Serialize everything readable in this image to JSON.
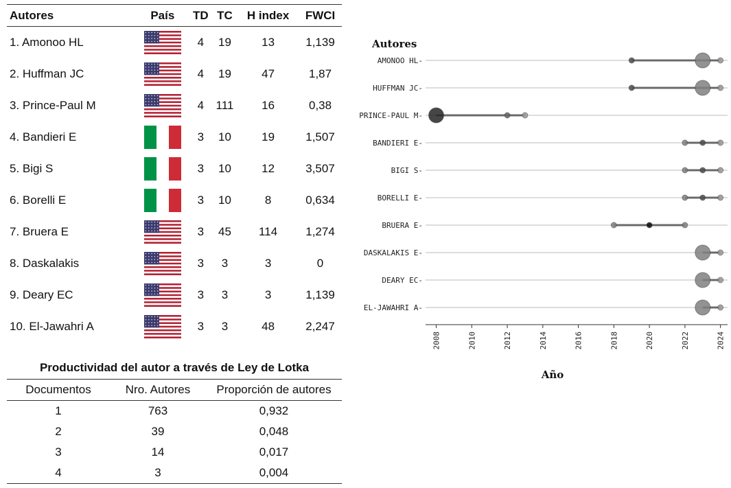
{
  "authors_table": {
    "headers": [
      "Autores",
      "País",
      "TD",
      "TC",
      "H index",
      "FWCI"
    ],
    "rows": [
      {
        "author": "1. Amonoo HL",
        "country": "usa-flag",
        "td": "4",
        "tc": "19",
        "h": "13",
        "fwci": "1,139"
      },
      {
        "author": "2. Huffman JC",
        "country": "usa-flag",
        "td": "4",
        "tc": "19",
        "h": "47",
        "fwci": "1,87"
      },
      {
        "author": "3. Prince-Paul M",
        "country": "usa-flag",
        "td": "4",
        "tc": "111",
        "h": "16",
        "fwci": "0,38"
      },
      {
        "author": "4. Bandieri E",
        "country": "italy-flag",
        "td": "3",
        "tc": "10",
        "h": "19",
        "fwci": "1,507"
      },
      {
        "author": "5. Bigi S",
        "country": "italy-flag",
        "td": "3",
        "tc": "10",
        "h": "12",
        "fwci": "3,507"
      },
      {
        "author": "6. Borelli E",
        "country": "italy-flag",
        "td": "3",
        "tc": "10",
        "h": "8",
        "fwci": "0,634"
      },
      {
        "author": "7. Bruera E",
        "country": "usa-flag",
        "td": "3",
        "tc": "45",
        "h": "114",
        "fwci": "1,274"
      },
      {
        "author": "8. Daskalakis",
        "country": "usa-flag",
        "td": "3",
        "tc": "3",
        "h": "3",
        "fwci": "0"
      },
      {
        "author": "9. Deary EC",
        "country": "usa-flag",
        "td": "3",
        "tc": "3",
        "h": "3",
        "fwci": "1,139"
      },
      {
        "author": "10. El-Jawahri A",
        "country": "usa-flag",
        "td": "3",
        "tc": "3",
        "h": "48",
        "fwci": "2,247"
      }
    ]
  },
  "lotka_table": {
    "title": "Productividad del autor a través de Ley de Lotka",
    "headers": [
      "Documentos",
      "Nro. Autores",
      "Proporción de autores"
    ],
    "rows": [
      {
        "docs": "1",
        "authors": "763",
        "proportion": "0,932"
      },
      {
        "docs": "2",
        "authors": "39",
        "proportion": "0,048"
      },
      {
        "docs": "3",
        "authors": "14",
        "proportion": "0,017"
      },
      {
        "docs": "4",
        "authors": "3",
        "proportion": "0,004"
      }
    ]
  },
  "colors": {
    "usa_red": "#b22234",
    "usa_blue": "#3c3b6e",
    "italy_green": "#009246",
    "italy_red": "#ce2b37",
    "line": "#555555",
    "grid": "#bbbbbb"
  },
  "chart_data": {
    "type": "scatter",
    "title": "",
    "legend_title": "Autores",
    "xlabel": "Año",
    "ylabel": "",
    "xlim": [
      2007.4,
      2024.4
    ],
    "xticks": [
      2008,
      2010,
      2012,
      2014,
      2016,
      2018,
      2020,
      2022,
      2024
    ],
    "categories": [
      "AMONOO HL",
      "HUFFMAN JC",
      "PRINCE-PAUL M",
      "BANDIERI E",
      "BIGI S",
      "BORELLI E",
      "BRUERA E",
      "DASKALAKIS E",
      "DEARY EC",
      "EL-JAWAHRI A"
    ],
    "series": [
      {
        "author": "AMONOO HL",
        "span": [
          2019,
          2024
        ],
        "points": [
          {
            "year": 2019,
            "size": 1,
            "shade": 0.7
          },
          {
            "year": 2023,
            "size": 3,
            "shade": 0.5
          },
          {
            "year": 2024,
            "size": 1,
            "shade": 0.4
          }
        ]
      },
      {
        "author": "HUFFMAN JC",
        "span": [
          2019,
          2024
        ],
        "points": [
          {
            "year": 2019,
            "size": 1,
            "shade": 0.7
          },
          {
            "year": 2023,
            "size": 3,
            "shade": 0.5
          },
          {
            "year": 2024,
            "size": 1,
            "shade": 0.4
          }
        ]
      },
      {
        "author": "PRINCE-PAUL M",
        "span": [
          2008,
          2013
        ],
        "points": [
          {
            "year": 2008,
            "size": 3,
            "shade": 0.85
          },
          {
            "year": 2012,
            "size": 1,
            "shade": 0.6
          },
          {
            "year": 2013,
            "size": 1,
            "shade": 0.4
          }
        ]
      },
      {
        "author": "BANDIERI E",
        "span": [
          2022,
          2024
        ],
        "points": [
          {
            "year": 2022,
            "size": 1,
            "shade": 0.5
          },
          {
            "year": 2023,
            "size": 1,
            "shade": 0.7
          },
          {
            "year": 2024,
            "size": 1,
            "shade": 0.4
          }
        ]
      },
      {
        "author": "BIGI S",
        "span": [
          2022,
          2024
        ],
        "points": [
          {
            "year": 2022,
            "size": 1,
            "shade": 0.5
          },
          {
            "year": 2023,
            "size": 1,
            "shade": 0.7
          },
          {
            "year": 2024,
            "size": 1,
            "shade": 0.4
          }
        ]
      },
      {
        "author": "BORELLI E",
        "span": [
          2022,
          2024
        ],
        "points": [
          {
            "year": 2022,
            "size": 1,
            "shade": 0.5
          },
          {
            "year": 2023,
            "size": 1,
            "shade": 0.7
          },
          {
            "year": 2024,
            "size": 1,
            "shade": 0.4
          }
        ]
      },
      {
        "author": "BRUERA E",
        "span": [
          2018,
          2022
        ],
        "points": [
          {
            "year": 2018,
            "size": 1,
            "shade": 0.5
          },
          {
            "year": 2020,
            "size": 1,
            "shade": 0.95
          },
          {
            "year": 2022,
            "size": 1,
            "shade": 0.5
          }
        ]
      },
      {
        "author": "DASKALAKIS E",
        "span": [
          2023,
          2024
        ],
        "points": [
          {
            "year": 2023,
            "size": 3,
            "shade": 0.5
          },
          {
            "year": 2024,
            "size": 1,
            "shade": 0.4
          }
        ]
      },
      {
        "author": "DEARY EC",
        "span": [
          2023,
          2024
        ],
        "points": [
          {
            "year": 2023,
            "size": 3,
            "shade": 0.5
          },
          {
            "year": 2024,
            "size": 1,
            "shade": 0.4
          }
        ]
      },
      {
        "author": "EL-JAWAHRI A",
        "span": [
          2023,
          2024
        ],
        "points": [
          {
            "year": 2023,
            "size": 3,
            "shade": 0.5
          },
          {
            "year": 2024,
            "size": 1,
            "shade": 0.4
          }
        ]
      }
    ]
  }
}
